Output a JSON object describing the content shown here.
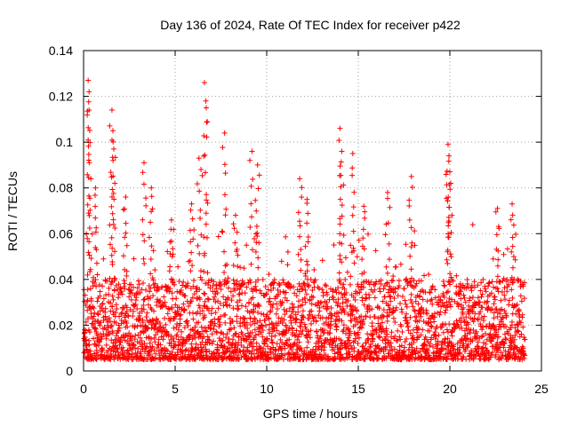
{
  "chart_data": {
    "type": "scatter",
    "title": "Day 136 of 2024, Rate Of TEC Index for receiver p422",
    "xlabel": "GPS time / hours",
    "ylabel": "ROTI / TECUs",
    "xlim": [
      0,
      25
    ],
    "ylim": [
      0,
      0.14
    ],
    "xticks": [
      0,
      5,
      10,
      15,
      20,
      25
    ],
    "xtick_labels": [
      "0",
      "5",
      "10",
      "15",
      "20",
      "25"
    ],
    "yticks": [
      0,
      0.02,
      0.04,
      0.06,
      0.08,
      0.1,
      0.12,
      0.14
    ],
    "ytick_labels": [
      "0",
      "0.02",
      "0.04",
      "0.06",
      "0.08",
      "0.1",
      "0.12",
      "0.14"
    ],
    "grid": true,
    "marker": "+",
    "series": [
      {
        "name": "ROTI p422",
        "color": "#ff0000",
        "x_range": [
          0,
          24.1
        ],
        "typical_band": [
          0.005,
          0.04
        ],
        "peaks": [
          {
            "x": 0.25,
            "y": 0.127
          },
          {
            "x": 0.3,
            "y": 0.122
          },
          {
            "x": 0.3,
            "y": 0.114
          },
          {
            "x": 0.65,
            "y": 0.08
          },
          {
            "x": 1.55,
            "y": 0.114
          },
          {
            "x": 1.6,
            "y": 0.105
          },
          {
            "x": 1.65,
            "y": 0.097
          },
          {
            "x": 2.3,
            "y": 0.076
          },
          {
            "x": 3.3,
            "y": 0.091
          },
          {
            "x": 3.7,
            "y": 0.08
          },
          {
            "x": 4.8,
            "y": 0.066
          },
          {
            "x": 5.9,
            "y": 0.073
          },
          {
            "x": 6.3,
            "y": 0.093
          },
          {
            "x": 6.6,
            "y": 0.126
          },
          {
            "x": 6.7,
            "y": 0.115
          },
          {
            "x": 7.7,
            "y": 0.104
          },
          {
            "x": 8.3,
            "y": 0.068
          },
          {
            "x": 9.2,
            "y": 0.096
          },
          {
            "x": 9.5,
            "y": 0.09
          },
          {
            "x": 11.8,
            "y": 0.084
          },
          {
            "x": 12.2,
            "y": 0.075
          },
          {
            "x": 14.0,
            "y": 0.106
          },
          {
            "x": 14.1,
            "y": 0.096
          },
          {
            "x": 14.7,
            "y": 0.095
          },
          {
            "x": 15.3,
            "y": 0.072
          },
          {
            "x": 16.6,
            "y": 0.078
          },
          {
            "x": 17.9,
            "y": 0.085
          },
          {
            "x": 19.9,
            "y": 0.099
          },
          {
            "x": 19.95,
            "y": 0.094
          },
          {
            "x": 20.0,
            "y": 0.087
          },
          {
            "x": 22.6,
            "y": 0.071
          },
          {
            "x": 23.4,
            "y": 0.073
          }
        ]
      }
    ]
  }
}
